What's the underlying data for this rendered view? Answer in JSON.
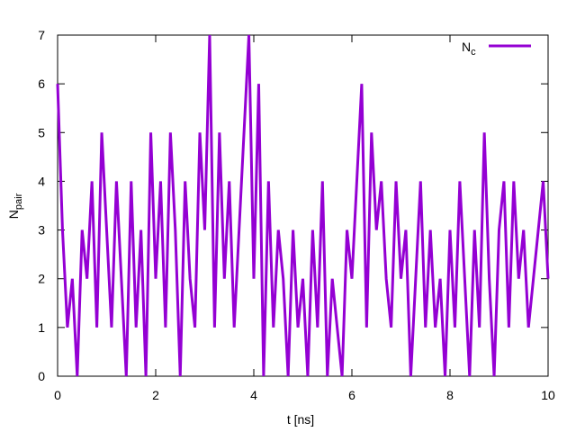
{
  "chart_data": {
    "type": "line",
    "xlabel": "t [ns]",
    "ylabel": "N",
    "ylabel_sub": "pair",
    "x": [
      0,
      0.1,
      0.2,
      0.3,
      0.4,
      0.5,
      0.6,
      0.7,
      0.8,
      0.9,
      1,
      1.1,
      1.2,
      1.3,
      1.4,
      1.5,
      1.6,
      1.7,
      1.8,
      1.9,
      2,
      2.1,
      2.2,
      2.3,
      2.4,
      2.5,
      2.6,
      2.7,
      2.8,
      2.9,
      3,
      3.1,
      3.2,
      3.3,
      3.4,
      3.5,
      3.6,
      3.7,
      3.8,
      3.9,
      4,
      4.1,
      4.2,
      4.3,
      4.4,
      4.5,
      4.6,
      4.7,
      4.8,
      4.9,
      5,
      5.1,
      5.2,
      5.3,
      5.4,
      5.5,
      5.6,
      5.7,
      5.8,
      5.9,
      6,
      6.1,
      6.2,
      6.3,
      6.4,
      6.5,
      6.6,
      6.7,
      6.8,
      6.9,
      7,
      7.1,
      7.2,
      7.3,
      7.4,
      7.5,
      7.6,
      7.7,
      7.8,
      7.9,
      8,
      8.1,
      8.2,
      8.3,
      8.4,
      8.5,
      8.6,
      8.7,
      8.8,
      8.9,
      9,
      9.1,
      9.2,
      9.3,
      9.4,
      9.5,
      9.6,
      9.7,
      9.8,
      9.9,
      10
    ],
    "series": [
      {
        "name": "N",
        "name_sub": "c",
        "color": "#9400d3",
        "values": [
          6,
          3,
          1,
          2,
          0,
          3,
          2,
          4,
          1,
          5,
          3,
          1,
          4,
          2,
          0,
          4,
          1,
          3,
          0,
          5,
          2,
          4,
          1,
          5,
          3,
          0,
          4,
          2,
          1,
          5,
          3,
          7,
          1,
          5,
          2,
          4,
          1,
          3,
          5,
          7,
          2,
          6,
          0,
          4,
          1,
          3,
          2,
          0,
          3,
          1,
          2,
          0,
          3,
          1,
          4,
          0,
          2,
          1,
          0,
          3,
          2,
          4,
          6,
          1,
          5,
          3,
          4,
          2,
          1,
          4,
          2,
          3,
          0,
          2,
          4,
          1,
          3,
          1,
          2,
          0,
          3,
          1,
          4,
          2,
          0,
          3,
          1,
          5,
          2,
          0,
          3,
          4,
          1,
          4,
          2,
          3,
          1,
          2,
          3,
          4,
          2
        ]
      }
    ],
    "xlim": [
      0,
      10
    ],
    "xticks": [
      0,
      2,
      4,
      6,
      8,
      10
    ],
    "ylim": [
      0,
      7
    ],
    "yticks": [
      0,
      1,
      2,
      3,
      4,
      5,
      6,
      7
    ],
    "grid": false
  }
}
